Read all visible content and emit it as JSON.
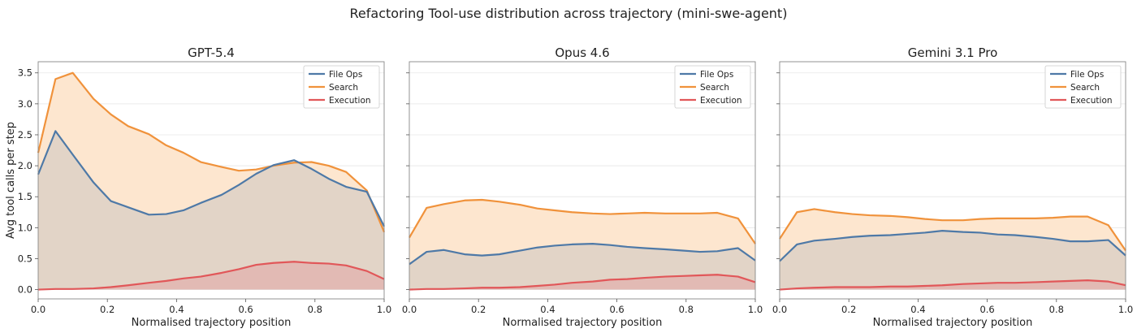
{
  "figure": {
    "suptitle": "Refactoring Tool-use distribution across trajectory (mini-swe-agent)"
  },
  "colors": {
    "File Ops": "#4e79a7",
    "Search": "#f0923b",
    "Execution": "#e15759",
    "search_fill": "#fde6cf",
    "fileops_fill": "#ddd0c6",
    "exec_fill": "#e2b5b0"
  },
  "chart_data": [
    {
      "type": "area",
      "title": "GPT-5.4",
      "xlabel": "Normalised trajectory position",
      "ylabel": "Avg tool calls per step",
      "xlim": [
        0,
        1
      ],
      "ylim": [
        -0.15,
        3.68
      ],
      "xticks": [
        "0.0",
        "0.2",
        "0.4",
        "0.6",
        "0.8",
        "1.0"
      ],
      "yticks": [
        "0.0",
        "0.5",
        "1.0",
        "1.5",
        "2.0",
        "2.5",
        "3.0",
        "3.5"
      ],
      "grid": true,
      "legend": "top-right",
      "x": [
        0,
        0.05,
        0.1,
        0.16,
        0.21,
        0.26,
        0.32,
        0.37,
        0.42,
        0.47,
        0.53,
        0.58,
        0.63,
        0.68,
        0.74,
        0.79,
        0.84,
        0.89,
        0.95,
        1.0
      ],
      "series": [
        {
          "name": "File Ops",
          "values": [
            1.86,
            2.56,
            2.18,
            1.73,
            1.43,
            1.33,
            1.21,
            1.22,
            1.28,
            1.4,
            1.53,
            1.69,
            1.87,
            2.01,
            2.09,
            1.95,
            1.79,
            1.66,
            1.58,
            1.02
          ]
        },
        {
          "name": "Search",
          "values": [
            2.21,
            3.4,
            3.5,
            3.08,
            2.83,
            2.64,
            2.51,
            2.33,
            2.21,
            2.06,
            1.98,
            1.92,
            1.94,
            2.0,
            2.05,
            2.06,
            2.0,
            1.9,
            1.6,
            0.93
          ]
        },
        {
          "name": "Execution",
          "values": [
            0.0,
            0.01,
            0.01,
            0.02,
            0.04,
            0.07,
            0.11,
            0.14,
            0.18,
            0.21,
            0.27,
            0.33,
            0.4,
            0.43,
            0.45,
            0.43,
            0.42,
            0.39,
            0.3,
            0.17
          ]
        }
      ]
    },
    {
      "type": "area",
      "title": "Opus 4.6",
      "xlabel": "Normalised trajectory position",
      "ylabel": "",
      "xlim": [
        0,
        1
      ],
      "ylim": [
        -0.15,
        3.68
      ],
      "xticks": [
        "0.0",
        "0.2",
        "0.4",
        "0.6",
        "0.8",
        "1.0"
      ],
      "yticks": [],
      "grid": true,
      "legend": "top-right",
      "x": [
        0,
        0.05,
        0.1,
        0.16,
        0.21,
        0.26,
        0.32,
        0.37,
        0.42,
        0.47,
        0.53,
        0.58,
        0.63,
        0.68,
        0.74,
        0.79,
        0.84,
        0.89,
        0.95,
        1.0
      ],
      "series": [
        {
          "name": "File Ops",
          "values": [
            0.41,
            0.61,
            0.64,
            0.57,
            0.55,
            0.57,
            0.63,
            0.68,
            0.71,
            0.73,
            0.74,
            0.72,
            0.69,
            0.67,
            0.65,
            0.63,
            0.61,
            0.62,
            0.67,
            0.47
          ]
        },
        {
          "name": "Search",
          "values": [
            0.84,
            1.32,
            1.38,
            1.44,
            1.45,
            1.42,
            1.37,
            1.31,
            1.28,
            1.25,
            1.23,
            1.22,
            1.23,
            1.24,
            1.23,
            1.23,
            1.23,
            1.24,
            1.15,
            0.74
          ]
        },
        {
          "name": "Execution",
          "values": [
            0.0,
            0.01,
            0.01,
            0.02,
            0.03,
            0.03,
            0.04,
            0.06,
            0.08,
            0.11,
            0.13,
            0.16,
            0.17,
            0.19,
            0.21,
            0.22,
            0.23,
            0.24,
            0.21,
            0.12
          ]
        }
      ]
    },
    {
      "type": "area",
      "title": "Gemini 3.1 Pro",
      "xlabel": "Normalised trajectory position",
      "ylabel": "",
      "xlim": [
        0,
        1
      ],
      "ylim": [
        -0.15,
        3.68
      ],
      "xticks": [
        "0.0",
        "0.2",
        "0.4",
        "0.6",
        "0.8",
        "1.0"
      ],
      "yticks": [],
      "grid": true,
      "legend": "top-right",
      "x": [
        0,
        0.05,
        0.1,
        0.16,
        0.21,
        0.26,
        0.32,
        0.37,
        0.42,
        0.47,
        0.53,
        0.58,
        0.63,
        0.68,
        0.74,
        0.79,
        0.84,
        0.89,
        0.95,
        1.0
      ],
      "series": [
        {
          "name": "File Ops",
          "values": [
            0.46,
            0.73,
            0.79,
            0.82,
            0.85,
            0.87,
            0.88,
            0.9,
            0.92,
            0.95,
            0.93,
            0.92,
            0.89,
            0.88,
            0.85,
            0.82,
            0.78,
            0.78,
            0.8,
            0.55
          ]
        },
        {
          "name": "Search",
          "values": [
            0.82,
            1.25,
            1.3,
            1.25,
            1.22,
            1.2,
            1.19,
            1.17,
            1.14,
            1.12,
            1.12,
            1.14,
            1.15,
            1.15,
            1.15,
            1.16,
            1.18,
            1.18,
            1.04,
            0.63
          ]
        },
        {
          "name": "Execution",
          "values": [
            0.0,
            0.02,
            0.03,
            0.04,
            0.04,
            0.04,
            0.05,
            0.05,
            0.06,
            0.07,
            0.09,
            0.1,
            0.11,
            0.11,
            0.12,
            0.13,
            0.14,
            0.15,
            0.13,
            0.07
          ]
        }
      ]
    }
  ]
}
